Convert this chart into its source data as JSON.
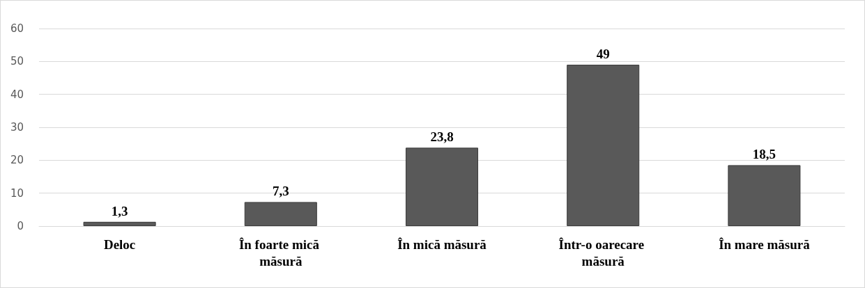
{
  "chart_data": {
    "type": "bar",
    "categories": [
      "Deloc",
      "În foarte mică măsură",
      "În mică măsură",
      "Într-o oarecare măsură",
      "În mare măsură"
    ],
    "values": [
      1.3,
      7.3,
      23.8,
      49,
      18.5
    ],
    "value_labels": [
      "1,3",
      "7,3",
      "23,8",
      "49",
      "18,5"
    ],
    "color": "#595959",
    "ylim": [
      0,
      60
    ],
    "yticks": [
      0,
      10,
      20,
      30,
      40,
      50,
      60
    ],
    "grid": "y"
  }
}
